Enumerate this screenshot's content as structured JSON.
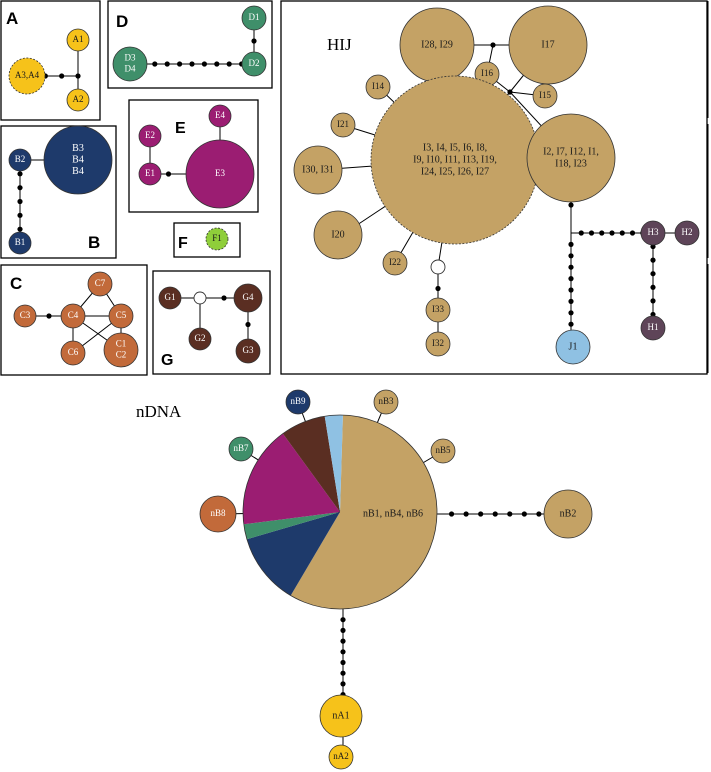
{
  "colors": {
    "yellow": "#f6c21a",
    "navy": "#1e3a6b",
    "orange": "#c26a3a",
    "green": "#3f8f6a",
    "magenta": "#9b1d72",
    "lime": "#8fce3a",
    "brown": "#5a2e22",
    "tan": "#c4a265",
    "purple": "#5e4458",
    "lightblue": "#8fc1e3",
    "mutation": "#000000",
    "empty": "#ffffff"
  },
  "panels": {
    "A": {
      "letter": "A",
      "nodes": {
        "A1": "A1",
        "A2": "A2",
        "A34": "A3,A4"
      }
    },
    "B": {
      "letter": "B",
      "nodes": {
        "B1": "B1",
        "B2": "B2",
        "B3": [
          "B3",
          "B4",
          "B4"
        ]
      }
    },
    "C": {
      "letter": "C",
      "nodes": {
        "C3": "C3",
        "C4": "C4",
        "C5": "C5",
        "C6": "C6",
        "C7": "C7",
        "C12": [
          "C1",
          "C2"
        ]
      }
    },
    "D": {
      "letter": "D",
      "nodes": {
        "D1": "D1",
        "D2": "D2",
        "D34": [
          "D3",
          "D4"
        ]
      }
    },
    "E": {
      "letter": "E",
      "nodes": {
        "E1": "E1",
        "E2": "E2",
        "E3": "E3",
        "E4": "E4"
      }
    },
    "F": {
      "letter": "F",
      "nodes": {
        "F1": "F1"
      }
    },
    "G": {
      "letter": "G",
      "nodes": {
        "G1": "G1",
        "G2": "G2",
        "G3": "G3",
        "G4": "G4"
      }
    },
    "HIJ": {
      "title": "HIJ",
      "nodes": {
        "I2829": "I28, I29",
        "I17": "I17",
        "I16": "I16",
        "I15": "I15",
        "I14": "I14",
        "I21": "I21",
        "I3031": "I30, I31",
        "I20": "I20",
        "I22": "I22",
        "I33": "I33",
        "I32": "I32",
        "Ibig": [
          "I3, I4, I5, I6, I8,",
          "I9, I10, I11, I13, I19,",
          "I24, I25, I26, I27"
        ],
        "I2": [
          "I2, I7, I12, I1,",
          "I18, I23"
        ],
        "H3": "H3",
        "H2": "H2",
        "H1": "H1",
        "J1": "J1"
      }
    }
  },
  "ndna": {
    "title": "nDNA",
    "nodes": {
      "nB9": "nB9",
      "nB3": "nB3",
      "nB7": "nB7",
      "nB5": "nB5",
      "nB8": "nB8",
      "nB2": "nB2",
      "main": "nB1, nB4, nB6",
      "nA1": "nA1",
      "nA2": "nA2"
    },
    "pie_fractions": [
      {
        "group": "tan",
        "fraction": 0.58
      },
      {
        "group": "navy",
        "fraction": 0.12
      },
      {
        "group": "green",
        "fraction": 0.025
      },
      {
        "group": "magenta",
        "fraction": 0.17
      },
      {
        "group": "brown",
        "fraction": 0.075
      },
      {
        "group": "lightblue",
        "fraction": 0.03
      }
    ]
  }
}
